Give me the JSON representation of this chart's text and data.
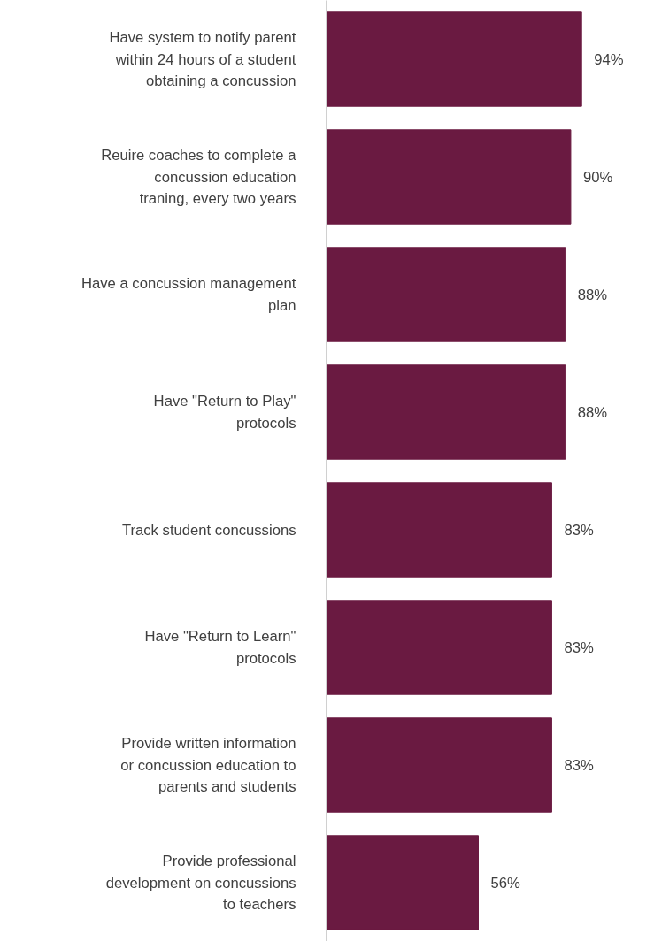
{
  "chart_data": {
    "type": "bar",
    "orientation": "horizontal",
    "data_labels": true,
    "tick_labels": "y",
    "color": "#6a1a41",
    "categories": [
      "Have system to notify parent within 24 hours of a student obtaining a concussion",
      "Reuire coaches to complete a concussion education traning, every two years",
      "Have a concussion management plan",
      "Have \"Return to Play\" protocols",
      "Track student concussions",
      "Have \"Return to Learn\" protocols",
      "Provide written information or concussion education to parents and students",
      "Provide professional development on concussions to teachers"
    ],
    "values": [
      94,
      90,
      88,
      88,
      83,
      83,
      83,
      56
    ],
    "value_labels": [
      "94%",
      "90%",
      "88%",
      "88%",
      "83%",
      "83%",
      "83%",
      "56%"
    ]
  }
}
